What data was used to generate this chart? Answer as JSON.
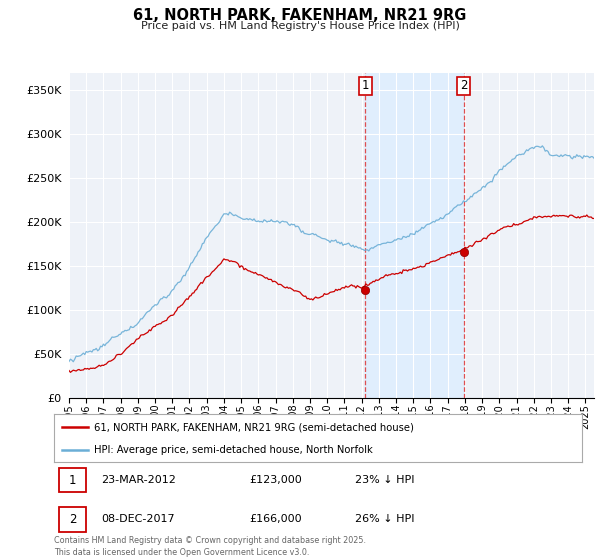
{
  "title": "61, NORTH PARK, FAKENHAM, NR21 9RG",
  "subtitle": "Price paid vs. HM Land Registry's House Price Index (HPI)",
  "ylabel_ticks": [
    "£0",
    "£50K",
    "£100K",
    "£150K",
    "£200K",
    "£250K",
    "£300K",
    "£350K"
  ],
  "ytick_values": [
    0,
    50000,
    100000,
    150000,
    200000,
    250000,
    300000,
    350000
  ],
  "ylim": [
    0,
    370000
  ],
  "xlim_start": 1995.0,
  "xlim_end": 2025.5,
  "hpi_color": "#6baed6",
  "price_color": "#cc0000",
  "vline1_x": 2012.22,
  "vline2_x": 2017.92,
  "vline_color": "#dd3333",
  "shade_color": "#ddeeff",
  "marker1_x": 2012.22,
  "marker1_y": 123000,
  "marker2_x": 2017.92,
  "marker2_y": 166000,
  "annotation1_label": "1",
  "annotation1_date": "23-MAR-2012",
  "annotation1_price": "£123,000",
  "annotation1_hpi": "23% ↓ HPI",
  "annotation2_label": "2",
  "annotation2_date": "08-DEC-2017",
  "annotation2_price": "£166,000",
  "annotation2_hpi": "26% ↓ HPI",
  "legend_line1": "61, NORTH PARK, FAKENHAM, NR21 9RG (semi-detached house)",
  "legend_line2": "HPI: Average price, semi-detached house, North Norfolk",
  "footer": "Contains HM Land Registry data © Crown copyright and database right 2025.\nThis data is licensed under the Open Government Licence v3.0.",
  "background_color": "#ffffff",
  "plot_bg_color": "#eef2f8"
}
